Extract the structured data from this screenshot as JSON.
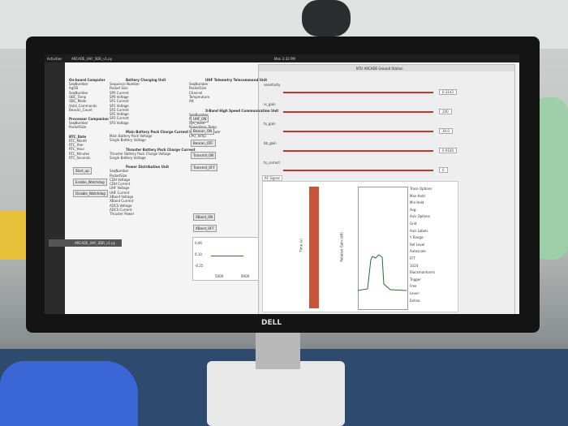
{
  "top_bar": {
    "activities": "Activities",
    "app": "ARCADE_UHF_SDR_v1.py",
    "clock": "Mon 2:33 PM"
  },
  "monitor": {
    "brand": "DELL"
  },
  "taskbar_item": "ARCADE_UHF_SDR_v1.py",
  "left_window": {
    "columns": [
      [
        {
          "title": "On-board Computer",
          "lines": [
            "SeqNumber",
            "AgOB",
            "SeqNumber",
            "OBC_Temp",
            "OBC_Mode",
            "Valid_Commands",
            "Beacon_Count"
          ]
        },
        {
          "title": "Processor Companion",
          "lines": [
            "SeqNumber",
            "PacketSize"
          ]
        },
        {
          "title": "RTC_Date",
          "lines": [
            "RTC_Month",
            "RTC_Year",
            "RTC_Hour",
            "RTC_Minutes",
            "RTC_Seconds"
          ]
        }
      ],
      [
        {
          "title": "Battery Charging Unit",
          "lines": [
            "Sequence Number",
            "Packet Size",
            "SP0 Current",
            "SP0 Voltage",
            "SP1 Current",
            "SP1 Voltage",
            "SP2 Current",
            "SP2 Voltage",
            "SP3 Current",
            "SP3 Voltage"
          ]
        },
        {
          "title": "Main Battery Pack Charge Current",
          "lines": [
            "Main Battery Pack Voltage",
            "Single Battery Voltage"
          ]
        },
        {
          "title": "Thruster Battery Pack Charge Current",
          "lines": [
            "Thruster Battery Pack Charge Voltage",
            "Single Battery Voltage"
          ]
        },
        {
          "title": "Power Distribution Unit",
          "lines": [
            "SeqNumber",
            "PacketSize",
            "CDH Voltage",
            "CDH Current",
            "UHF Voltage",
            "UHF Current",
            "XBand Voltage",
            "XBand Current",
            "ADCS Voltage",
            "ADCS Current",
            "Thruster Power"
          ]
        }
      ],
      [
        {
          "title": "UHF Telemetry Telecommand Unit",
          "lines": [
            "SeqNumber",
            "PacketSize",
            "Channel",
            "Temperature",
            "Att"
          ]
        },
        {
          "title": "X-Band High Speed Communication Unit",
          "lines": [
            "SeqNumber",
            "PacketSize",
            "Sys_State",
            "PowerAmp_Temp",
            "Measured_Txpower",
            "CPU_Temp"
          ]
        }
      ]
    ],
    "buttons_left": [
      "Start_up",
      "Enable_Watchdog",
      "Disable_Watchdog"
    ],
    "buttons_mid": [
      "UHF_ON",
      "Beacon_ON",
      "Beacon_OFF",
      "Transmit_ON",
      "Transmit_OFF"
    ],
    "buttons_xband": [
      "XBand_ON",
      "XBand_OFF"
    ],
    "plot": {
      "yticks": [
        "0.46",
        "0.10",
        "-0.25"
      ],
      "xticks": [
        "5000",
        "9000"
      ]
    }
  },
  "right_window": {
    "title": "NTU ARCADE Ground Station",
    "sliders": [
      {
        "label": "sensitivity",
        "value": "0.3142"
      },
      {
        "label": "rx_gain",
        "value": "100"
      },
      {
        "label": "tx_gain",
        "value": "30.0"
      },
      {
        "label": "bb_gain",
        "value": "0.9100"
      },
      {
        "label": "tx_correct",
        "value": "0"
      }
    ],
    "tab": "RF Signal",
    "waterfall_ylabel": "Time (s)",
    "fft_ylabel": "Relative Gain (dB)",
    "options": [
      "Trace Options",
      "Max Hold",
      "Min Hold",
      "Avg:",
      "Axis Options",
      "Grid",
      "Axis Labels",
      "Y Range:",
      "Ref Level",
      "Autoscale",
      "FFT",
      "1024",
      "Blackmanharris",
      "Trigger",
      "Free",
      "Level:",
      "Extras"
    ]
  }
}
